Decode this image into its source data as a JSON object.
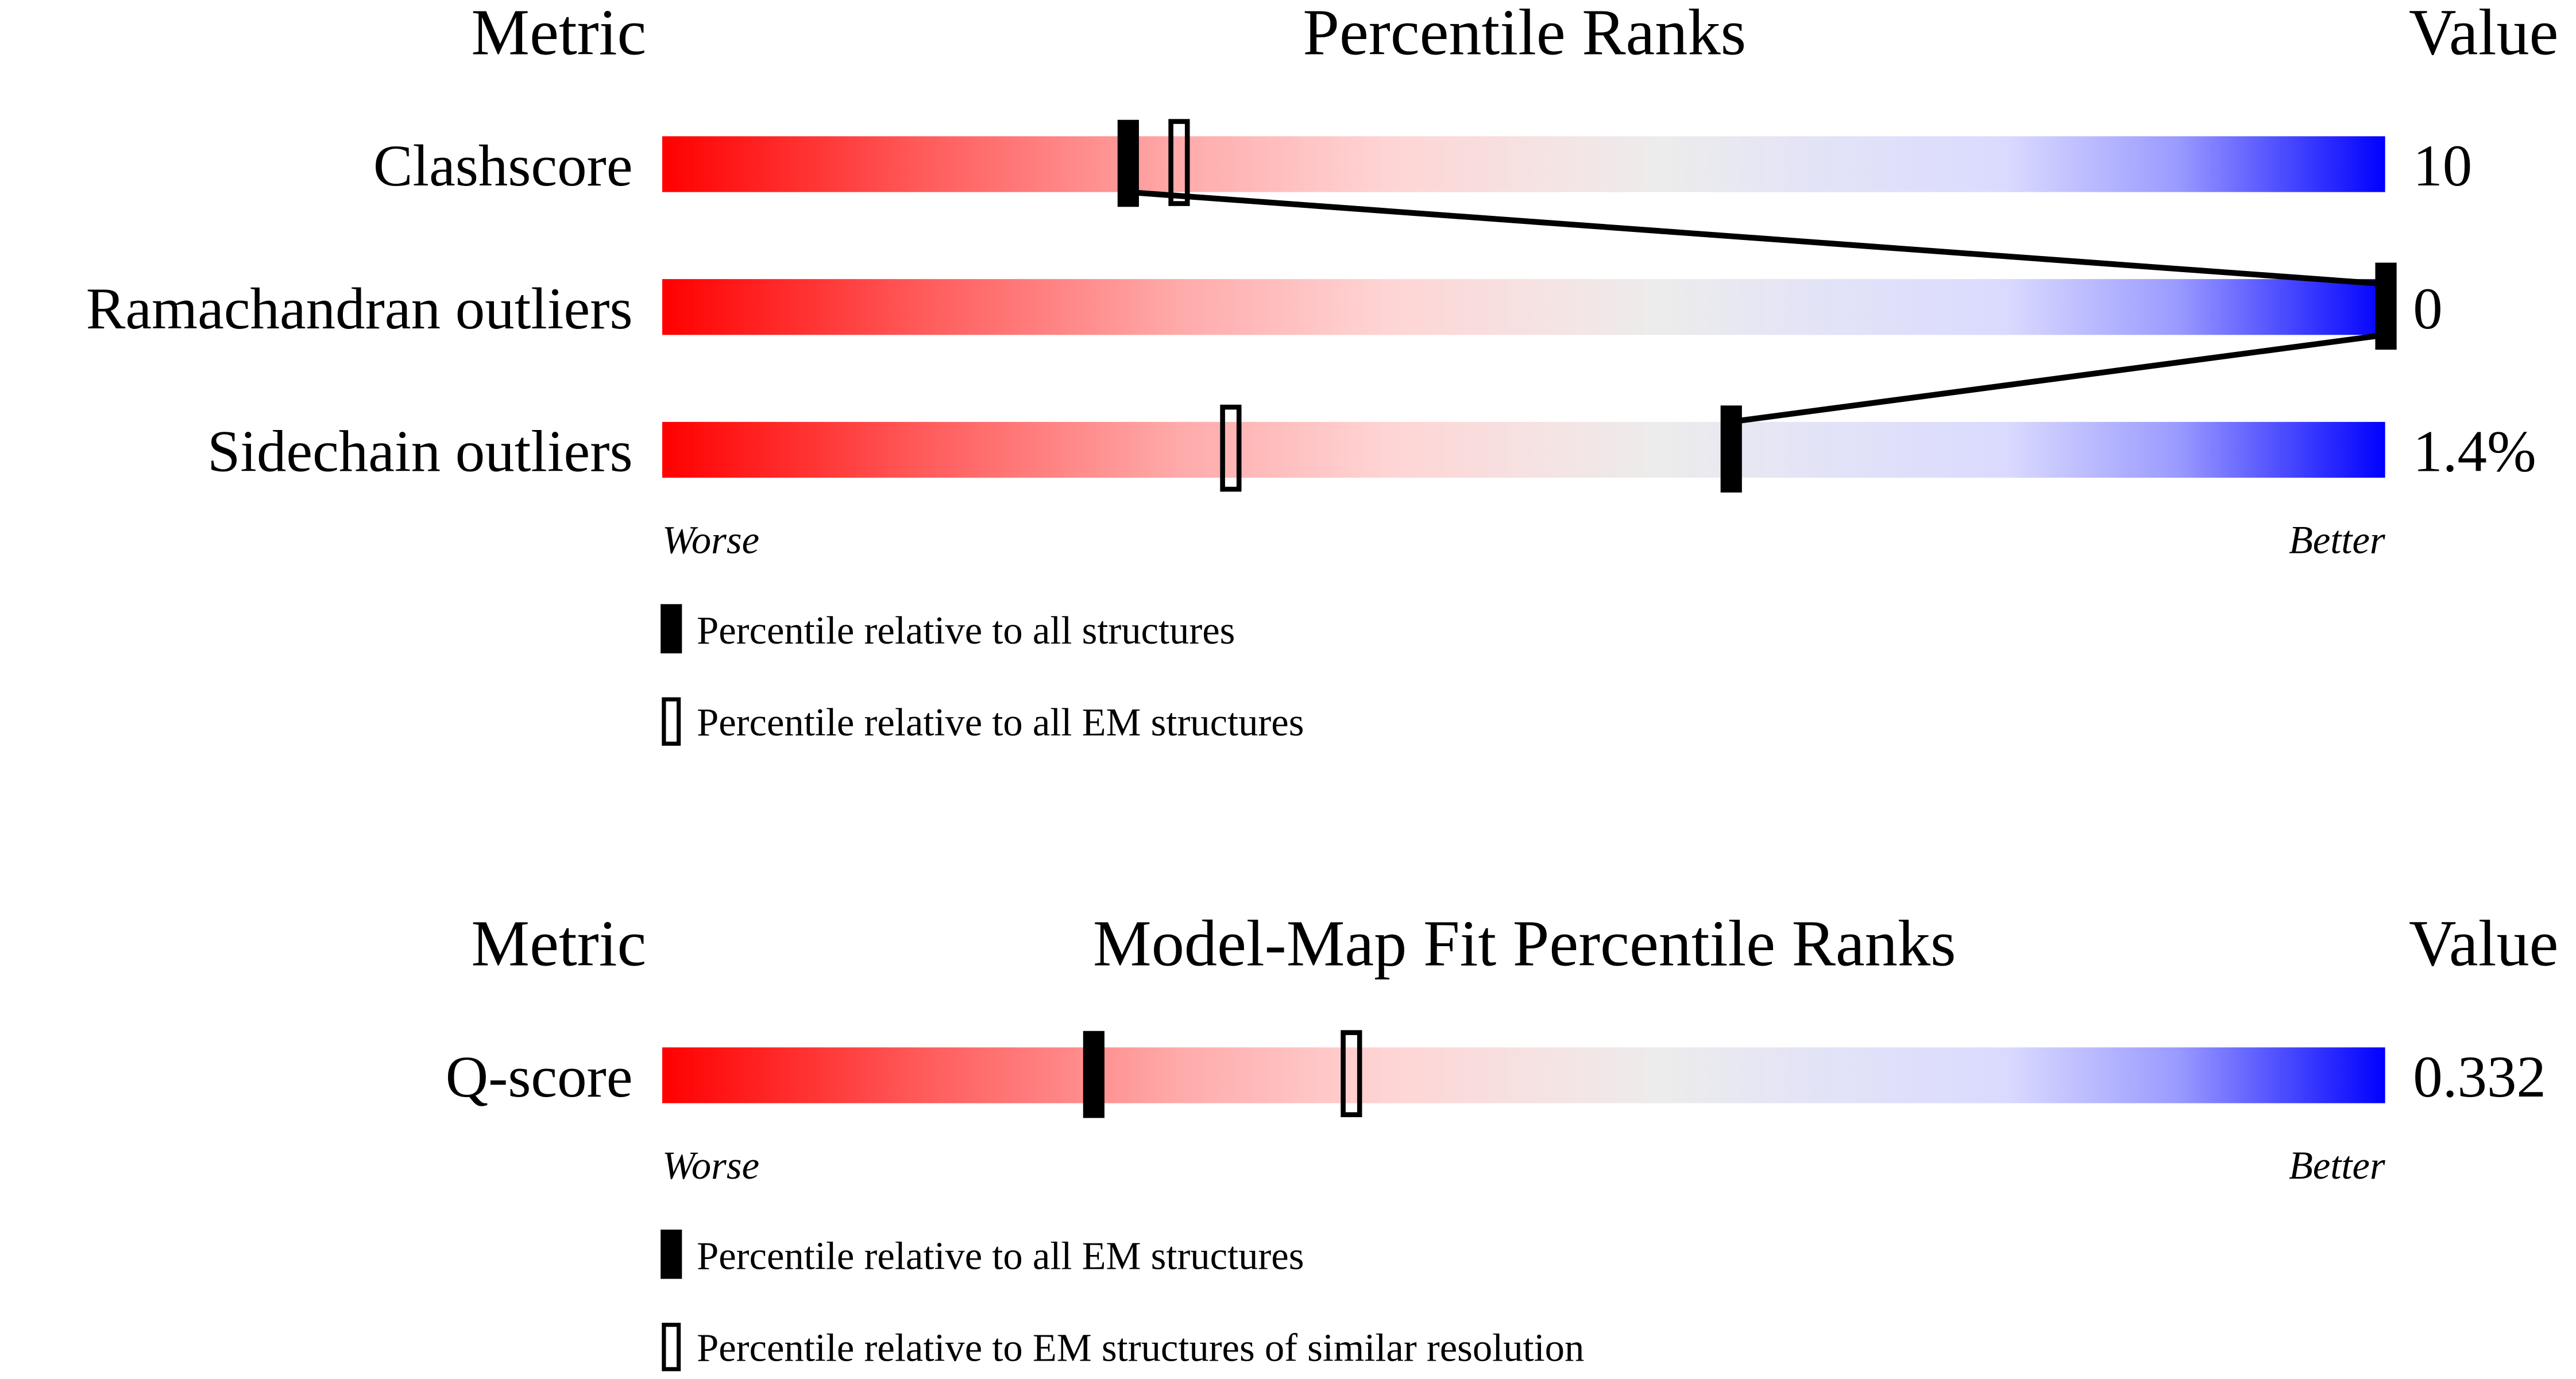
{
  "chart_data": [
    {
      "type": "percentile-slider",
      "header": {
        "metric": "Metric",
        "title": "Percentile Ranks",
        "value": "Value"
      },
      "xlim": [
        0,
        100
      ],
      "axis_labels": {
        "worse": "Worse",
        "better": "Better"
      },
      "rows": [
        {
          "metric": "Clashscore",
          "value": "10",
          "percentile_all": 27,
          "percentile_em": 30
        },
        {
          "metric": "Ramachandran outliers",
          "value": "0",
          "percentile_all": 100,
          "percentile_em": 100
        },
        {
          "metric": "Sidechain outliers",
          "value": "1.4%",
          "percentile_all": 62,
          "percentile_em": 33
        }
      ],
      "legend": [
        {
          "marker": "filled",
          "label": "Percentile relative to all structures"
        },
        {
          "marker": "open",
          "label": "Percentile relative to all EM structures"
        }
      ]
    },
    {
      "type": "percentile-slider",
      "header": {
        "metric": "Metric",
        "title": "Model-Map Fit Percentile Ranks",
        "value": "Value"
      },
      "xlim": [
        0,
        100
      ],
      "axis_labels": {
        "worse": "Worse",
        "better": "Better"
      },
      "rows": [
        {
          "metric": "Q-score",
          "value": "0.332",
          "percentile_all": 25,
          "percentile_em": 40
        }
      ],
      "legend": [
        {
          "marker": "filled",
          "label": "Percentile relative to all EM structures"
        },
        {
          "marker": "open",
          "label": "Percentile relative to EM structures of similar resolution"
        }
      ]
    }
  ],
  "colors": {
    "worse": "#ff0000",
    "middle": "#eeeeee",
    "better": "#0000ff",
    "marker": "#000000"
  }
}
